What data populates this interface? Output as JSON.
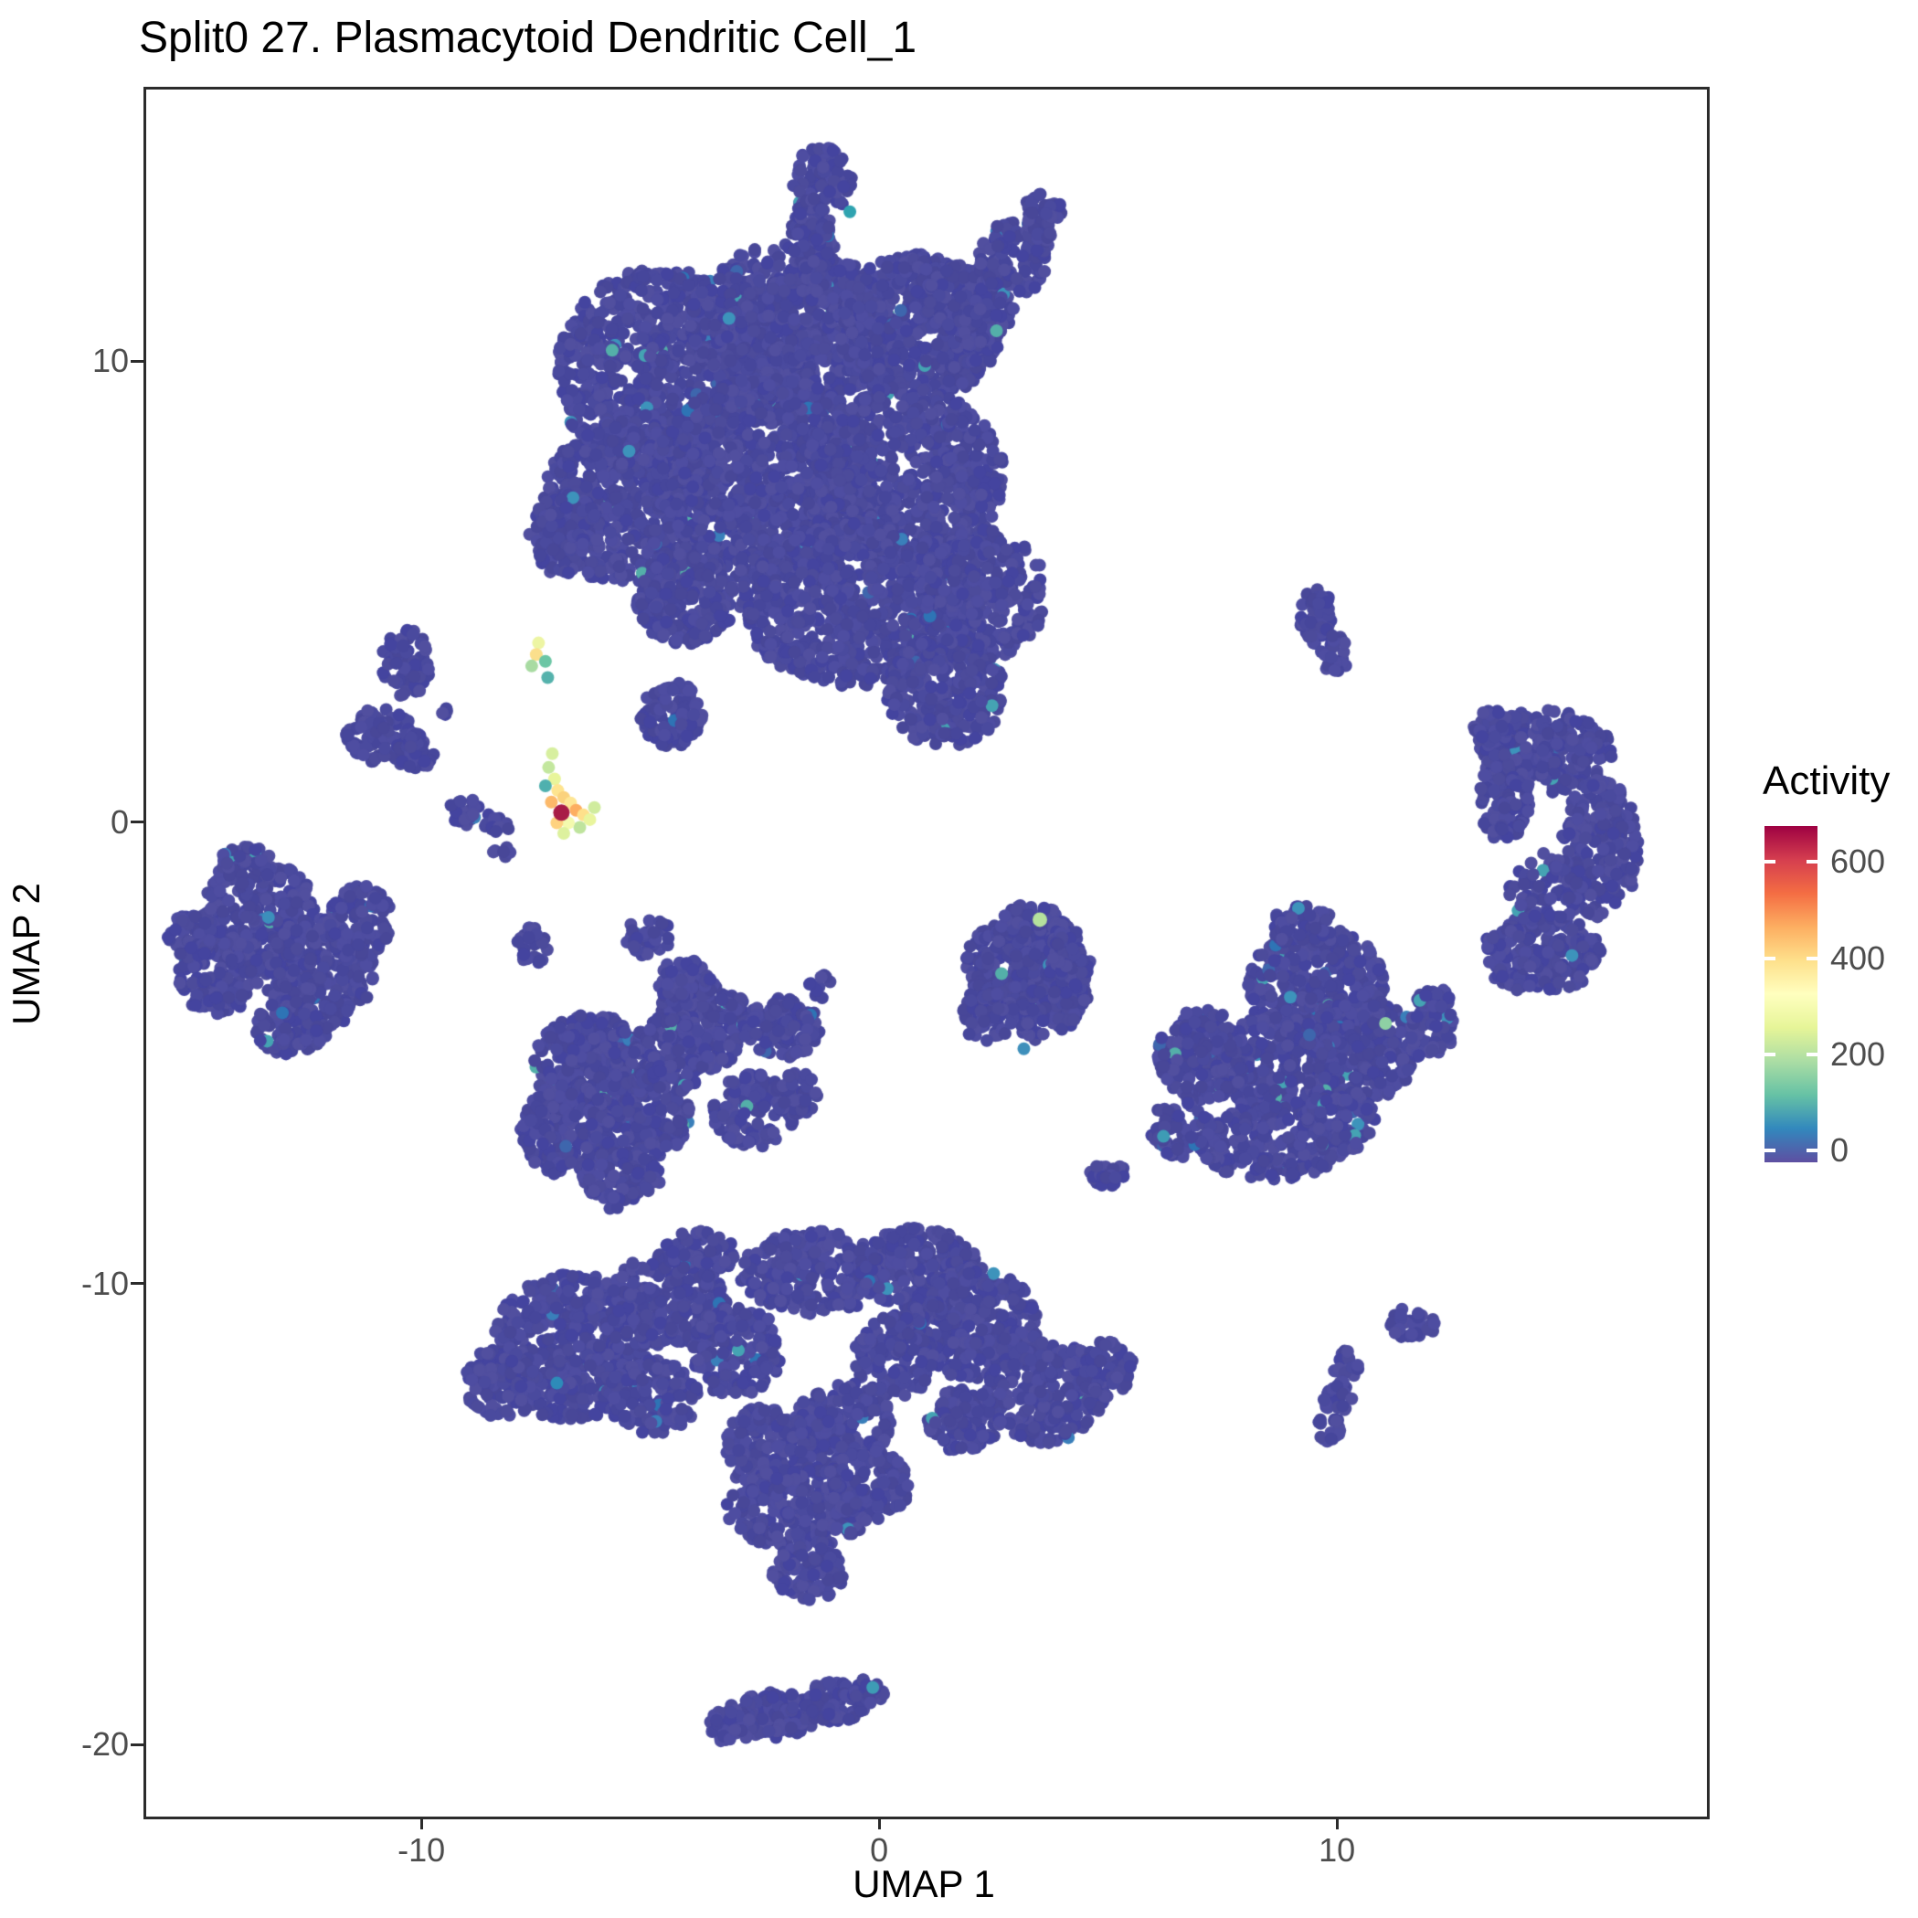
{
  "chart_data": {
    "type": "scatter",
    "title": "Split0 27. Plasmacytoid Dendritic Cell_1",
    "xlabel": "UMAP 1",
    "ylabel": "UMAP 2",
    "xlim": [
      -16.07,
      18.02
    ],
    "ylim": [
      -21.5,
      15.95
    ],
    "xticks": [
      -10,
      0,
      10
    ],
    "yticks": [
      -20,
      -10,
      0,
      10
    ],
    "grid": false,
    "point_radius": 7,
    "base_colors": [
      "#46469B",
      "#4A4A9E",
      "#4E4DA1",
      "#44449F",
      "#514F9F",
      "#484798",
      "#4C4B9B"
    ],
    "mid_colors": [
      "#3E66AD",
      "#3A7FBA",
      "#3D93BB",
      "#45A3B3",
      "#54AFA9",
      "#2E74B5"
    ],
    "clusters": [
      {
        "name": "top-main",
        "mid": 0.014,
        "blobs": [
          [
            -4.8,
            9.8,
            2.3,
            2.3,
            850
          ],
          [
            -2.0,
            10.8,
            2.2,
            1.8,
            750
          ],
          [
            0.8,
            10.8,
            1.8,
            1.6,
            550
          ],
          [
            1.9,
            11.3,
            1.0,
            0.9,
            170
          ],
          [
            2.9,
            12.3,
            0.8,
            0.8,
            110
          ],
          [
            3.5,
            13.2,
            0.45,
            0.55,
            50
          ],
          [
            -5.6,
            7.0,
            1.8,
            1.8,
            550
          ],
          [
            -2.5,
            7.5,
            2.5,
            2.2,
            950
          ],
          [
            0.5,
            7.5,
            2.2,
            2.0,
            750
          ],
          [
            -0.5,
            4.8,
            2.6,
            1.8,
            850
          ],
          [
            2.2,
            5.0,
            1.4,
            1.4,
            330
          ],
          [
            -4.3,
            4.9,
            1.1,
            1.0,
            230
          ],
          [
            -1.3,
            14.0,
            0.65,
            0.8,
            80
          ],
          [
            -1.5,
            12.7,
            0.5,
            0.9,
            90
          ],
          [
            -6.9,
            6.3,
            0.8,
            0.9,
            120
          ],
          [
            -4.6,
            2.4,
            0.7,
            0.7,
            100
          ],
          [
            1.4,
            2.9,
            1.3,
            1.2,
            280
          ]
        ]
      },
      {
        "name": "left-small-pieces",
        "mid": 0.01,
        "blobs": [
          [
            -10.4,
            3.5,
            0.55,
            0.75,
            70
          ],
          [
            -10.9,
            1.95,
            0.8,
            0.6,
            90
          ],
          [
            -10.2,
            1.6,
            0.45,
            0.4,
            40
          ],
          [
            -9.1,
            0.3,
            0.35,
            0.3,
            25
          ],
          [
            -8.4,
            0.05,
            0.3,
            0.25,
            18
          ],
          [
            -9.6,
            2.5,
            0.15,
            0.15,
            4
          ],
          [
            -8.3,
            -0.6,
            0.2,
            0.15,
            6
          ]
        ]
      },
      {
        "name": "left",
        "mid": 0.008,
        "blobs": [
          [
            -13.6,
            -2.0,
            1.3,
            1.2,
            280
          ],
          [
            -12.3,
            -3.2,
            1.2,
            1.2,
            260
          ],
          [
            -14.5,
            -3.2,
            0.9,
            0.9,
            150
          ],
          [
            -15.1,
            -2.4,
            0.5,
            0.5,
            50
          ],
          [
            -11.4,
            -2.1,
            0.7,
            0.8,
            90
          ],
          [
            -12.9,
            -4.4,
            0.8,
            0.6,
            80
          ],
          [
            -13.9,
            -0.9,
            0.6,
            0.45,
            60
          ]
        ]
      },
      {
        "name": "middle",
        "mid": 0.012,
        "blobs": [
          [
            -7.6,
            -2.6,
            0.4,
            0.4,
            30
          ],
          [
            -5.1,
            -2.4,
            0.5,
            0.45,
            40
          ],
          [
            -6.3,
            -5.2,
            1.3,
            1.1,
            280
          ],
          [
            -6.9,
            -6.6,
            1.0,
            1.0,
            190
          ],
          [
            -5.3,
            -6.3,
            1.1,
            1.0,
            200
          ],
          [
            -5.7,
            -7.6,
            0.9,
            0.55,
            100
          ],
          [
            -3.9,
            -4.3,
            1.0,
            1.0,
            210
          ],
          [
            -2.2,
            -4.4,
            0.85,
            0.65,
            130
          ],
          [
            -2.8,
            -6.2,
            0.9,
            0.8,
            110
          ],
          [
            -4.6,
            -5.0,
            0.9,
            0.8,
            150
          ],
          [
            -4.3,
            -3.4,
            0.6,
            0.5,
            70
          ],
          [
            -1.9,
            -5.8,
            0.5,
            0.5,
            50
          ],
          [
            -1.3,
            -3.5,
            0.3,
            0.25,
            10
          ],
          [
            -5.9,
            -8.2,
            0.2,
            0.15,
            6
          ]
        ]
      },
      {
        "name": "center-round",
        "mid": 0.01,
        "blobs": [
          [
            2.8,
            -3.1,
            1.0,
            1.0,
            200
          ],
          [
            3.6,
            -3.8,
            0.9,
            0.9,
            170
          ],
          [
            3.3,
            -2.4,
            0.8,
            0.7,
            130
          ],
          [
            2.3,
            -4.1,
            0.6,
            0.6,
            70
          ],
          [
            4.1,
            -2.9,
            0.5,
            0.6,
            60
          ]
        ]
      },
      {
        "name": "right",
        "mid": 0.03,
        "blobs": [
          [
            9.5,
            -3.5,
            1.5,
            1.3,
            380
          ],
          [
            10.5,
            -4.8,
            1.2,
            1.2,
            270
          ],
          [
            8.6,
            -5.2,
            1.3,
            1.1,
            270
          ],
          [
            7.0,
            -5.0,
            1.0,
            1.0,
            190
          ],
          [
            8.5,
            -6.9,
            1.6,
            0.8,
            250
          ],
          [
            10.0,
            -6.4,
            0.8,
            0.7,
            110
          ],
          [
            9.2,
            -2.2,
            0.7,
            0.45,
            65
          ],
          [
            12.0,
            -4.3,
            0.5,
            0.9,
            80
          ],
          [
            6.5,
            -6.6,
            0.7,
            0.6,
            70
          ]
        ]
      },
      {
        "name": "far-right-crescent",
        "mid": 0.01,
        "blobs": [
          [
            14.5,
            1.6,
            1.5,
            0.9,
            270
          ],
          [
            15.7,
            -0.5,
            0.85,
            1.5,
            250
          ],
          [
            14.4,
            -2.8,
            1.3,
            0.85,
            220
          ],
          [
            13.6,
            0.6,
            0.55,
            1.0,
            110
          ],
          [
            14.5,
            -1.4,
            0.8,
            0.8,
            90
          ],
          [
            13.3,
            2.1,
            0.4,
            0.4,
            40
          ]
        ]
      },
      {
        "name": "top-right-small",
        "mid": 0,
        "blobs": [
          [
            9.5,
            4.5,
            0.38,
            0.62,
            55
          ],
          [
            9.9,
            3.7,
            0.32,
            0.42,
            30
          ]
        ]
      },
      {
        "name": "bottom-main",
        "mid": 0.01,
        "blobs": [
          [
            -6.8,
            -11.3,
            1.7,
            1.6,
            480
          ],
          [
            -8.3,
            -12.1,
            0.8,
            0.8,
            120
          ],
          [
            -4.7,
            -10.3,
            1.3,
            1.0,
            240
          ],
          [
            -3.2,
            -11.4,
            1.0,
            1.0,
            170
          ],
          [
            -5.0,
            -12.4,
            1.0,
            0.8,
            150
          ],
          [
            -1.5,
            -9.7,
            1.6,
            0.9,
            250
          ],
          [
            0.8,
            -9.6,
            1.3,
            0.9,
            210
          ],
          [
            2.0,
            -10.8,
            1.4,
            1.2,
            310
          ],
          [
            0.3,
            -11.5,
            0.9,
            0.9,
            140
          ],
          [
            3.6,
            -12.3,
            1.3,
            1.1,
            250
          ],
          [
            4.9,
            -11.8,
            0.6,
            0.6,
            70
          ],
          [
            -0.8,
            -13.0,
            1.1,
            0.9,
            170
          ],
          [
            -2.5,
            -13.5,
            1.0,
            0.9,
            150
          ],
          [
            -1.8,
            -14.8,
            1.6,
            0.9,
            250
          ],
          [
            -0.3,
            -14.3,
            0.9,
            0.8,
            130
          ],
          [
            -1.6,
            -16.2,
            0.8,
            0.6,
            90
          ],
          [
            1.8,
            -12.9,
            0.8,
            0.7,
            110
          ],
          [
            -4.0,
            -9.3,
            0.8,
            0.5,
            80
          ]
        ]
      },
      {
        "name": "bottom-right-bits",
        "mid": 0,
        "blobs": [
          [
            4.9,
            -7.55,
            0.4,
            0.3,
            25
          ],
          [
            11.6,
            -10.8,
            0.5,
            0.35,
            35
          ],
          [
            10.15,
            -11.7,
            0.3,
            0.3,
            20
          ],
          [
            9.95,
            -12.4,
            0.35,
            0.35,
            25
          ],
          [
            9.75,
            -13.1,
            0.3,
            0.3,
            20
          ]
        ]
      },
      {
        "name": "bottom-strip",
        "mid": 0.008,
        "blobs": [
          [
            -2.4,
            -19.3,
            1.0,
            0.5,
            130
          ],
          [
            -1.0,
            -19.0,
            0.7,
            0.45,
            90
          ],
          [
            -0.3,
            -18.8,
            0.35,
            0.3,
            30
          ],
          [
            -3.3,
            -19.5,
            0.5,
            0.4,
            50
          ]
        ]
      }
    ],
    "highlights": [
      [
        -7.5,
        3.95,
        "#EDF5A3",
        7
      ],
      [
        -7.55,
        3.7,
        "#FBDF8C",
        7
      ],
      [
        -7.65,
        3.45,
        "#A8DBA2",
        7
      ],
      [
        -7.35,
        3.55,
        "#6CC6A5",
        7
      ],
      [
        -7.3,
        3.2,
        "#55B2AC",
        7
      ],
      [
        -7.2,
        1.55,
        "#D7EF9F",
        7
      ],
      [
        -7.28,
        1.25,
        "#C3E79E",
        7
      ],
      [
        -7.15,
        1.0,
        "#E8F59B",
        7
      ],
      [
        -7.08,
        0.75,
        "#FEE48F",
        7
      ],
      [
        -6.95,
        0.6,
        "#FBD27D",
        7
      ],
      [
        -7.22,
        0.5,
        "#FCB96A",
        7
      ],
      [
        -6.8,
        0.48,
        "#FEE695",
        7
      ],
      [
        -7.35,
        0.85,
        "#4FB0AE",
        7
      ],
      [
        -6.68,
        0.32,
        "#FDAE61",
        7
      ],
      [
        -6.52,
        0.22,
        "#FEE08B",
        7
      ],
      [
        -6.38,
        0.12,
        "#E9F59D",
        7
      ],
      [
        -6.28,
        0.38,
        "#D0EC9E",
        7
      ],
      [
        -6.6,
        -0.05,
        "#BFE49D",
        7
      ],
      [
        -6.85,
        0.05,
        "#F4FAAE",
        7
      ],
      [
        -7.1,
        0.05,
        "#FED27F",
        7
      ],
      [
        -6.95,
        -0.18,
        "#DDF19E",
        7
      ],
      [
        -7.0,
        0.27,
        "#A81C47",
        9
      ],
      [
        3.45,
        -2.05,
        "#B5E19D",
        8
      ],
      [
        11.0,
        -4.3,
        "#8ED0A4",
        7
      ],
      [
        6.15,
        -6.75,
        "#3E9CB5",
        7
      ],
      [
        -7.1,
        -12.1,
        "#2E8BB9",
        7
      ],
      [
        -13.4,
        -2.0,
        "#3C8FBC",
        7
      ],
      [
        -0.2,
        -18.7,
        "#3E9CB5",
        7
      ],
      [
        -0.7,
        13.3,
        "#2FA3B0",
        7
      ],
      [
        3.1,
        -4.85,
        "#3E8FBB",
        7
      ]
    ],
    "legend": {
      "title": "Activity",
      "ticks": [
        0,
        200,
        400,
        600
      ],
      "bar_range": [
        -25,
        675
      ],
      "colormap": [
        "#5E4FA2",
        "#3288BD",
        "#66C2A5",
        "#ABDDA4",
        "#E6F598",
        "#FFFFBF",
        "#FEE08B",
        "#FDAE61",
        "#F46D43",
        "#D53E4F",
        "#9E0142"
      ]
    }
  }
}
